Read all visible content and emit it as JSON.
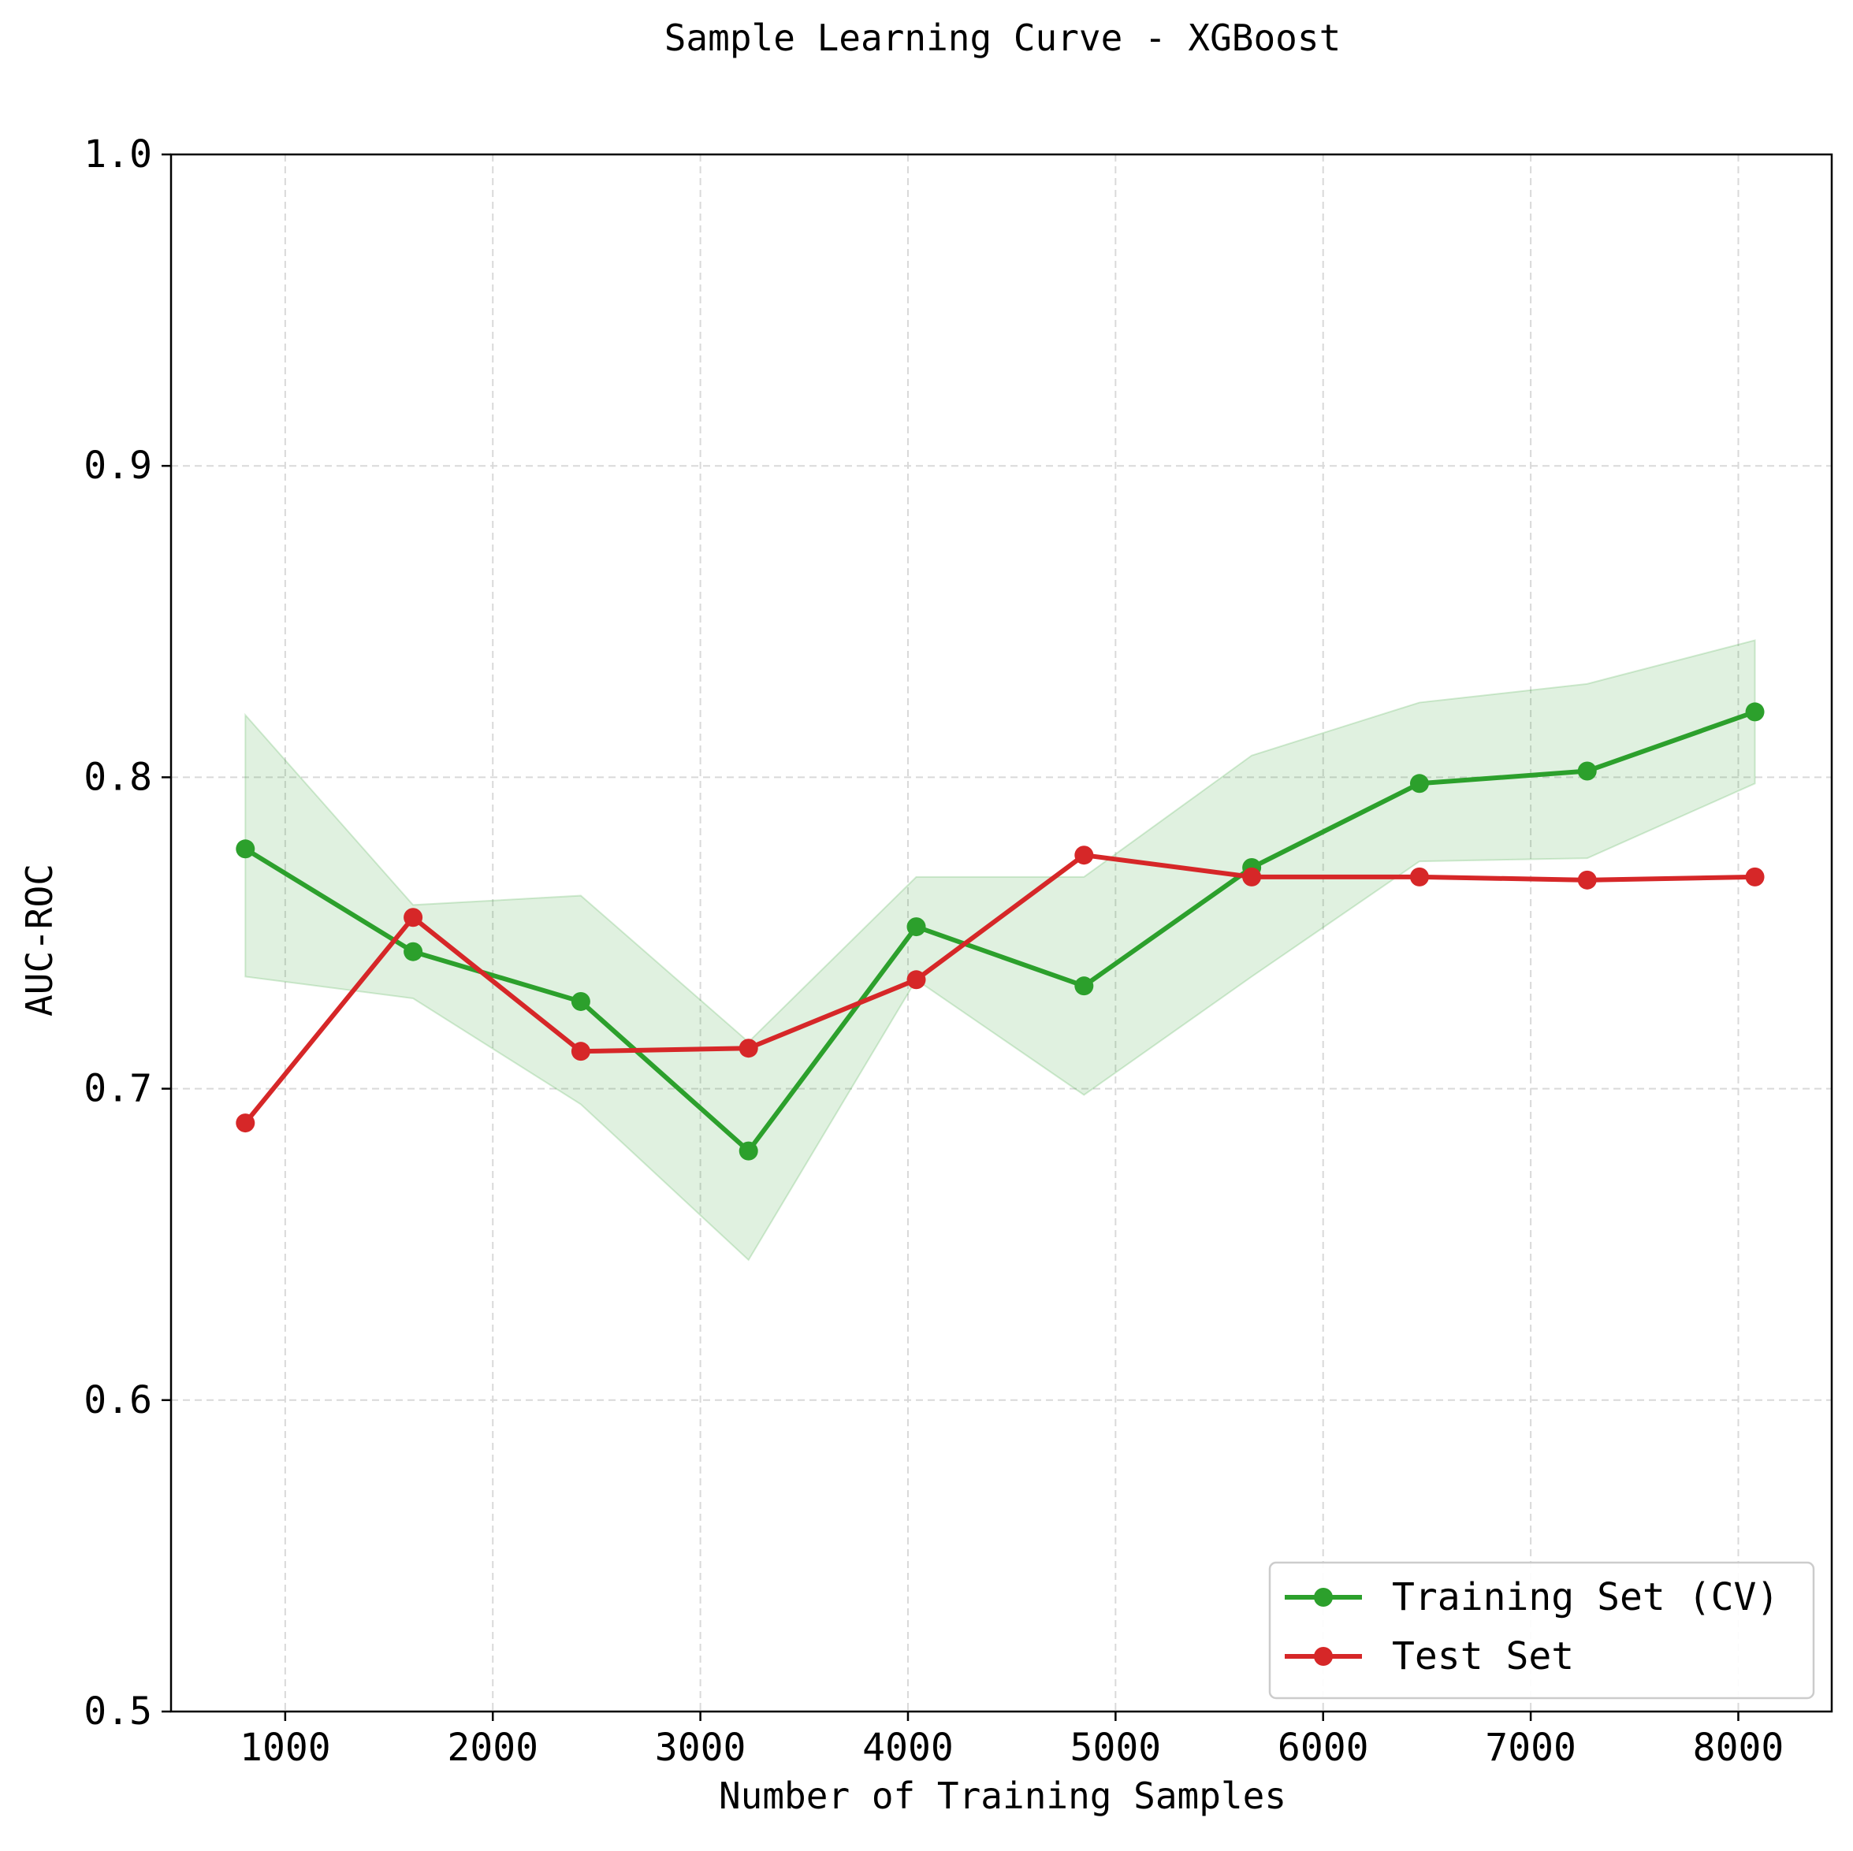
{
  "chart_data": {
    "type": "line",
    "title": "Sample Learning Curve - XGBoost",
    "xlabel": "Number of Training Samples",
    "ylabel": "AUC-ROC",
    "xlim": [
      450,
      8450
    ],
    "ylim": [
      0.5,
      1.0
    ],
    "x_ticks": [
      1000,
      2000,
      3000,
      4000,
      5000,
      6000,
      7000,
      8000
    ],
    "y_ticks": [
      0.5,
      0.6,
      0.7,
      0.8,
      0.9,
      1.0
    ],
    "x_tick_labels": [
      "1000",
      "2000",
      "3000",
      "4000",
      "5000",
      "6000",
      "7000",
      "8000"
    ],
    "y_tick_labels": [
      "0.5",
      "0.6",
      "0.7",
      "0.8",
      "0.9",
      "1.0"
    ],
    "grid": true,
    "legend_position": "bottom-right",
    "x": [
      808,
      1616,
      2424,
      3232,
      4040,
      4848,
      5656,
      6464,
      7272,
      8080
    ],
    "series": [
      {
        "name": "Training Set (CV)",
        "color": "#2ca02c",
        "values": [
          0.777,
          0.744,
          0.728,
          0.68,
          0.752,
          0.733,
          0.771,
          0.798,
          0.802,
          0.821
        ],
        "band_lower": [
          0.736,
          0.729,
          0.695,
          0.645,
          0.735,
          0.698,
          0.736,
          0.773,
          0.774,
          0.798
        ],
        "band_upper": [
          0.82,
          0.759,
          0.762,
          0.715,
          0.768,
          0.768,
          0.807,
          0.824,
          0.83,
          0.844
        ]
      },
      {
        "name": "Test Set",
        "color": "#d62728",
        "values": [
          0.689,
          0.755,
          0.712,
          0.713,
          0.735,
          0.775,
          0.768,
          0.768,
          0.767,
          0.768
        ]
      }
    ],
    "band_color": "#2ca02c"
  }
}
